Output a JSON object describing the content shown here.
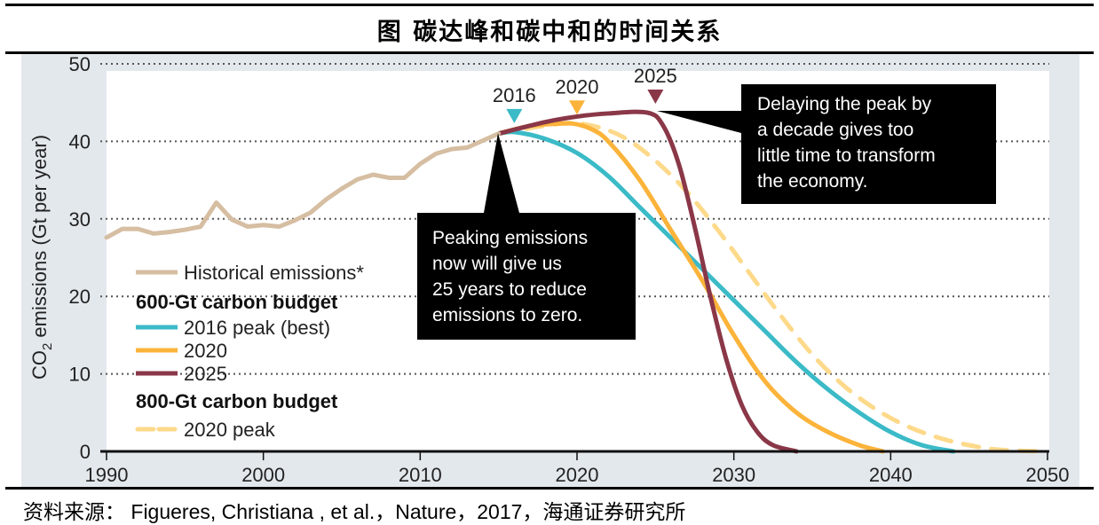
{
  "title": "图  碳达峰和碳中和的时间关系",
  "source": "资料来源：  Figueres, Christiana , et al.，Nature，2017，海通证券研究所",
  "chart_data": {
    "type": "line",
    "ylabel": "CO2 emissions (Gt per year)",
    "ylabel_parts": {
      "pre": "CO",
      "sub": "2",
      "post": " emissions (Gt per year)"
    },
    "xlim": [
      1990,
      2050
    ],
    "ylim": [
      0,
      50
    ],
    "xticks": [
      1990,
      2000,
      2010,
      2020,
      2030,
      2040,
      2050
    ],
    "yticks": [
      0,
      10,
      20,
      30,
      40,
      50
    ],
    "grid": "horizontal dotted",
    "legend_position": "left",
    "legend_groups": {
      "g600": "600-Gt carbon budget",
      "g800": "800-Gt carbon budget"
    },
    "series": [
      {
        "name": "Historical emissions*",
        "color": "#d6bea2",
        "style": "solid",
        "x": [
          1990,
          1991,
          1992,
          1993,
          1994,
          1995,
          1996,
          1997,
          1998,
          1999,
          2000,
          2001,
          2002,
          2003,
          2004,
          2005,
          2006,
          2007,
          2008,
          2009,
          2010,
          2011,
          2012,
          2013,
          2014,
          2015
        ],
        "y": [
          27.6,
          28.7,
          28.7,
          28.1,
          28.3,
          28.6,
          29.0,
          32.1,
          29.9,
          29.0,
          29.2,
          29.0,
          29.8,
          30.8,
          32.5,
          33.9,
          35.1,
          35.7,
          35.3,
          35.3,
          37.1,
          38.4,
          39.0,
          39.2,
          40.1,
          41.0
        ]
      },
      {
        "name": "2016 peak (best)",
        "group": "g600",
        "color": "#3bbac7",
        "style": "solid",
        "x": [
          2015,
          2016,
          2018,
          2020,
          2022,
          2024,
          2026,
          2028,
          2030,
          2032,
          2034,
          2036,
          2038,
          2040,
          2042,
          2044
        ],
        "y": [
          41,
          41.2,
          40.3,
          38.5,
          35.5,
          31.5,
          27.5,
          23.5,
          19.5,
          15.5,
          11.5,
          8,
          5,
          2.5,
          0.8,
          0
        ]
      },
      {
        "name": "2020",
        "group": "g600",
        "color": "#fbb33a",
        "style": "solid",
        "x": [
          2015,
          2017,
          2019,
          2020,
          2021,
          2022,
          2024,
          2026,
          2028,
          2030,
          2032,
          2034,
          2036,
          2038,
          2039.5
        ],
        "y": [
          41,
          42,
          42.3,
          42.2,
          41.5,
          40,
          35,
          28.5,
          22,
          15,
          9,
          5,
          2.5,
          0.8,
          0
        ]
      },
      {
        "name": "2025",
        "group": "g600",
        "color": "#8a3748",
        "style": "solid",
        "x": [
          2015,
          2018,
          2020,
          2022,
          2024.5,
          2025.5,
          2026.5,
          2027.5,
          2028.5,
          2029.5,
          2030.5,
          2031.5,
          2032.5,
          2034
        ],
        "y": [
          41,
          42.5,
          43.2,
          43.6,
          43.7,
          42,
          37,
          29,
          20,
          12,
          6,
          2.5,
          0.8,
          0
        ]
      },
      {
        "name": "2020 peak",
        "group": "g800",
        "color": "#fdd98a",
        "style": "dashed",
        "x": [
          2015,
          2019,
          2021,
          2023,
          2025,
          2027,
          2029,
          2031,
          2033,
          2035,
          2037,
          2039,
          2041,
          2043,
          2045,
          2047,
          2050
        ],
        "y": [
          41,
          42.3,
          42,
          40.5,
          37.5,
          33.5,
          28.5,
          23,
          17.5,
          12.5,
          8.5,
          5.5,
          3.3,
          1.8,
          0.8,
          0.2,
          0
        ]
      }
    ],
    "peak_markers": [
      {
        "label": "2016",
        "year": 2016,
        "color": "#3bbac7"
      },
      {
        "label": "2020",
        "year": 2020,
        "color": "#fbb33a"
      },
      {
        "label": "2025",
        "year": 2025,
        "color": "#8a3748"
      }
    ],
    "annotations": [
      {
        "lines": [
          "Peaking emissions",
          "now will give us",
          "25 years to reduce",
          "emissions to zero."
        ]
      },
      {
        "lines": [
          "Delaying the peak by",
          "a decade gives too",
          "little time to transform",
          "the economy."
        ]
      }
    ]
  }
}
